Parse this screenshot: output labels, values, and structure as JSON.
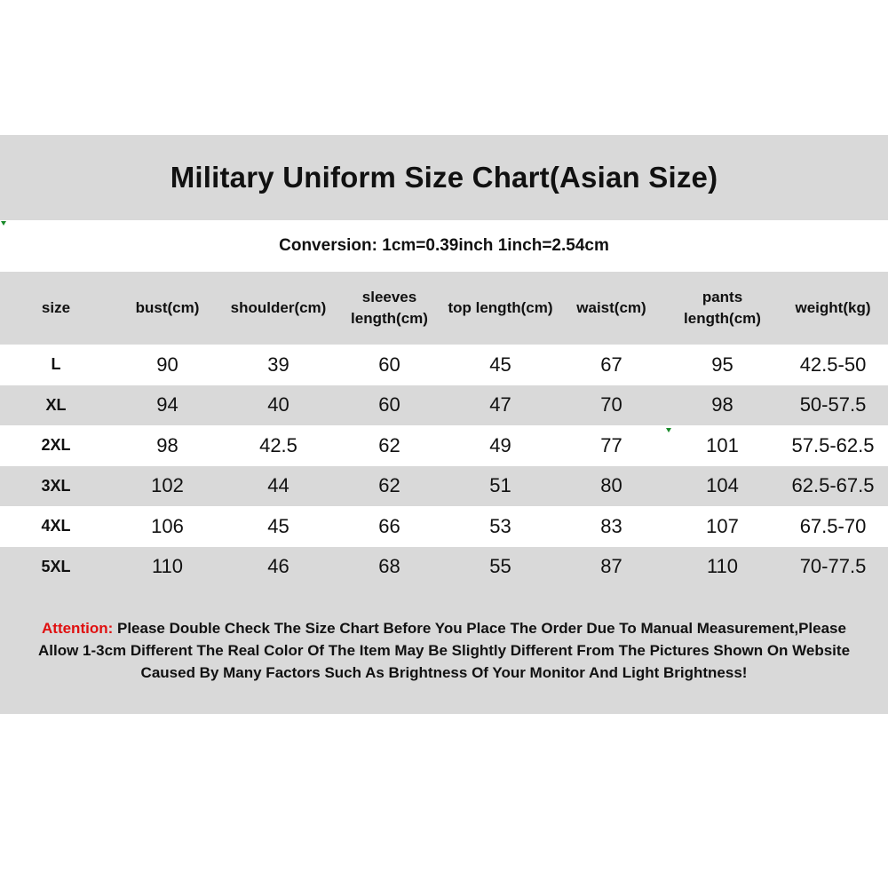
{
  "title": "Military Uniform Size Chart(Asian Size)",
  "conversion": "Conversion: 1cm=0.39inch  1inch=2.54cm",
  "colors": {
    "band_gray": "#d9d9d9",
    "attention_red": "#e01010"
  },
  "chart_data": {
    "type": "table",
    "columns": [
      "size",
      "bust(cm)",
      "shoulder(cm)",
      "sleeves length(cm)",
      "top length(cm)",
      "waist(cm)",
      "pants length(cm)",
      "weight(kg)"
    ],
    "rows": [
      [
        "L",
        "90",
        "39",
        "60",
        "45",
        "67",
        "95",
        "42.5-50"
      ],
      [
        "XL",
        "94",
        "40",
        "60",
        "47",
        "70",
        "98",
        "50-57.5"
      ],
      [
        "2XL",
        "98",
        "42.5",
        "62",
        "49",
        "77",
        "101",
        "57.5-62.5"
      ],
      [
        "3XL",
        "102",
        "44",
        "62",
        "51",
        "80",
        "104",
        "62.5-67.5"
      ],
      [
        "4XL",
        "106",
        "45",
        "66",
        "53",
        "83",
        "107",
        "67.5-70"
      ],
      [
        "5XL",
        "110",
        "46",
        "68",
        "55",
        "87",
        "110",
        "70-77.5"
      ]
    ]
  },
  "attention": {
    "label": "Attention:",
    "line1": " Please Double Check The Size Chart Before You Place The Order Due To Manual Measurement,Please",
    "line2": "Allow 1-3cm Different The Real Color Of The Item May Be Slightly Different From The Pictures Shown On Website",
    "line3": "Caused By Many Factors Such As Brightness Of Your Monitor And Light Brightness!"
  }
}
